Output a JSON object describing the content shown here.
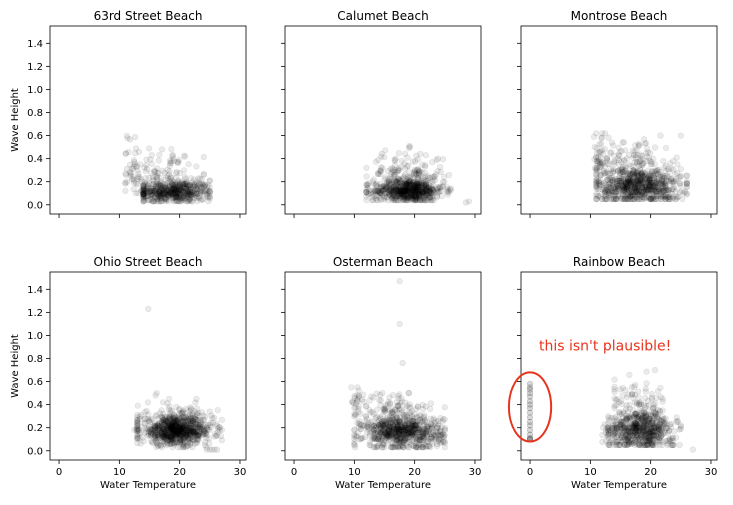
{
  "chart_data": {
    "type": "scatter",
    "xlabel": "Water Temperature",
    "ylabel": "Wave Height",
    "xlim": [
      -1.5,
      31
    ],
    "ylim": [
      -0.08,
      1.55
    ],
    "xticks": [
      "0",
      "10",
      "20",
      "30"
    ],
    "yticks": [
      "0.0",
      "0.2",
      "0.4",
      "0.6",
      "0.8",
      "1.0",
      "1.2",
      "1.4"
    ],
    "point_color": "#000000",
    "point_alpha": 0.08,
    "annotation": {
      "panel": 5,
      "text": "this isn't plausible!",
      "color": "#e8341c",
      "ellipse_center": [
        0,
        0.38
      ],
      "ellipse_radius": [
        3.5,
        0.3
      ]
    },
    "panels": [
      {
        "title": "63rd Street Beach",
        "clusters": [
          {
            "n": 520,
            "xc": 19,
            "xs": 3.2,
            "xmin": 14,
            "xmax": 25,
            "yc": 0.11,
            "ys": 0.05,
            "ymin": 0.03,
            "ymax": 0.3
          },
          {
            "n": 120,
            "xc": 16.5,
            "xs": 3,
            "xmin": 11,
            "xmax": 24,
            "yc": 0.28,
            "ys": 0.1,
            "ymin": 0.12,
            "ymax": 0.6
          },
          {
            "n": 20,
            "xc": 12.5,
            "xs": 0.6,
            "xmin": 11,
            "xmax": 14,
            "yc": 0.35,
            "ys": 0.15,
            "ymin": 0.1,
            "ymax": 0.6
          }
        ],
        "points": []
      },
      {
        "title": "Calumet Beach",
        "clusters": [
          {
            "n": 640,
            "xc": 19,
            "xs": 2.9,
            "xmin": 12,
            "xmax": 26,
            "yc": 0.12,
            "ys": 0.05,
            "ymin": 0.04,
            "ymax": 0.3
          },
          {
            "n": 160,
            "xc": 18.5,
            "xs": 3.2,
            "xmin": 12,
            "xmax": 26,
            "yc": 0.26,
            "ys": 0.1,
            "ymin": 0.12,
            "ymax": 0.55
          }
        ],
        "points": [
          [
            29,
            0.03
          ],
          [
            28.5,
            0.02
          ]
        ]
      },
      {
        "title": "Montrose Beach",
        "clusters": [
          {
            "n": 700,
            "xc": 18,
            "xs": 3.5,
            "xmin": 11,
            "xmax": 26,
            "yc": 0.16,
            "ys": 0.08,
            "ymin": 0.05,
            "ymax": 0.38
          },
          {
            "n": 160,
            "xc": 17,
            "xs": 3.5,
            "xmin": 11,
            "xmax": 25,
            "yc": 0.35,
            "ys": 0.12,
            "ymin": 0.15,
            "ymax": 0.6
          },
          {
            "n": 30,
            "xc": 11.5,
            "xs": 0.7,
            "xmin": 10.5,
            "xmax": 13,
            "yc": 0.45,
            "ys": 0.12,
            "ymin": 0.2,
            "ymax": 0.62
          }
        ],
        "points": []
      },
      {
        "title": "Ohio Street Beach",
        "clusters": [
          {
            "n": 800,
            "xc": 19.5,
            "xs": 3,
            "xmin": 13,
            "xmax": 27,
            "yc": 0.17,
            "ys": 0.06,
            "ymin": 0.03,
            "ymax": 0.35
          },
          {
            "n": 90,
            "xc": 19,
            "xs": 3.2,
            "xmin": 13,
            "xmax": 27,
            "yc": 0.3,
            "ys": 0.06,
            "ymin": 0.2,
            "ymax": 0.45
          }
        ],
        "points": [
          [
            14.8,
            1.23
          ],
          [
            16.2,
            0.5
          ],
          [
            16,
            0.48
          ],
          [
            12.5,
            0.18
          ],
          [
            12.8,
            0.19
          ],
          [
            13.2,
            0.18
          ],
          [
            24.5,
            0.01
          ],
          [
            25,
            0.01
          ],
          [
            25.4,
            0.01
          ],
          [
            25.8,
            0.01
          ],
          [
            26.2,
            0.01
          ]
        ]
      },
      {
        "title": "Osterman Beach",
        "clusters": [
          {
            "n": 700,
            "xc": 18,
            "xs": 3.3,
            "xmin": 10,
            "xmax": 25,
            "yc": 0.16,
            "ys": 0.07,
            "ymin": 0.03,
            "ymax": 0.35
          },
          {
            "n": 110,
            "xc": 16.5,
            "xs": 3.2,
            "xmin": 10,
            "xmax": 25,
            "yc": 0.35,
            "ys": 0.08,
            "ymin": 0.2,
            "ymax": 0.5
          },
          {
            "n": 25,
            "xc": 10.5,
            "xs": 0.6,
            "xmin": 9.5,
            "xmax": 12,
            "yc": 0.42,
            "ys": 0.1,
            "ymin": 0.25,
            "ymax": 0.55
          }
        ],
        "points": [
          [
            17.5,
            1.47
          ],
          [
            17.5,
            1.1
          ],
          [
            18,
            0.76
          ]
        ]
      },
      {
        "title": "Rainbow Beach",
        "clusters": [
          {
            "n": 550,
            "xc": 18.5,
            "xs": 2.7,
            "xmin": 13,
            "xmax": 25,
            "yc": 0.17,
            "ys": 0.08,
            "ymin": 0.05,
            "ymax": 0.4
          },
          {
            "n": 130,
            "xc": 17.5,
            "xs": 2.4,
            "xmin": 14,
            "xmax": 22,
            "yc": 0.37,
            "ys": 0.13,
            "ymin": 0.2,
            "ymax": 0.7
          },
          {
            "n": 25,
            "xc": 13,
            "xs": 0.6,
            "xmin": 12,
            "xmax": 14.5,
            "yc": 0.15,
            "ys": 0.06,
            "ymin": 0.05,
            "ymax": 0.28
          }
        ],
        "points": [
          [
            0,
            0.55
          ],
          [
            0,
            0.53
          ],
          [
            0,
            0.5
          ],
          [
            0,
            0.47
          ],
          [
            0,
            0.43
          ],
          [
            0,
            0.4
          ],
          [
            0,
            0.37
          ],
          [
            0,
            0.33
          ],
          [
            0,
            0.29
          ],
          [
            0,
            0.25
          ],
          [
            0,
            0.22
          ],
          [
            0,
            0.18
          ],
          [
            0,
            0.14
          ],
          [
            0,
            0.11
          ],
          [
            0,
            0.1
          ],
          [
            0,
            0.1
          ],
          [
            0,
            0.58
          ],
          [
            27,
            0.01
          ],
          [
            24.5,
            0.25
          ],
          [
            25,
            0.22
          ]
        ]
      }
    ]
  }
}
